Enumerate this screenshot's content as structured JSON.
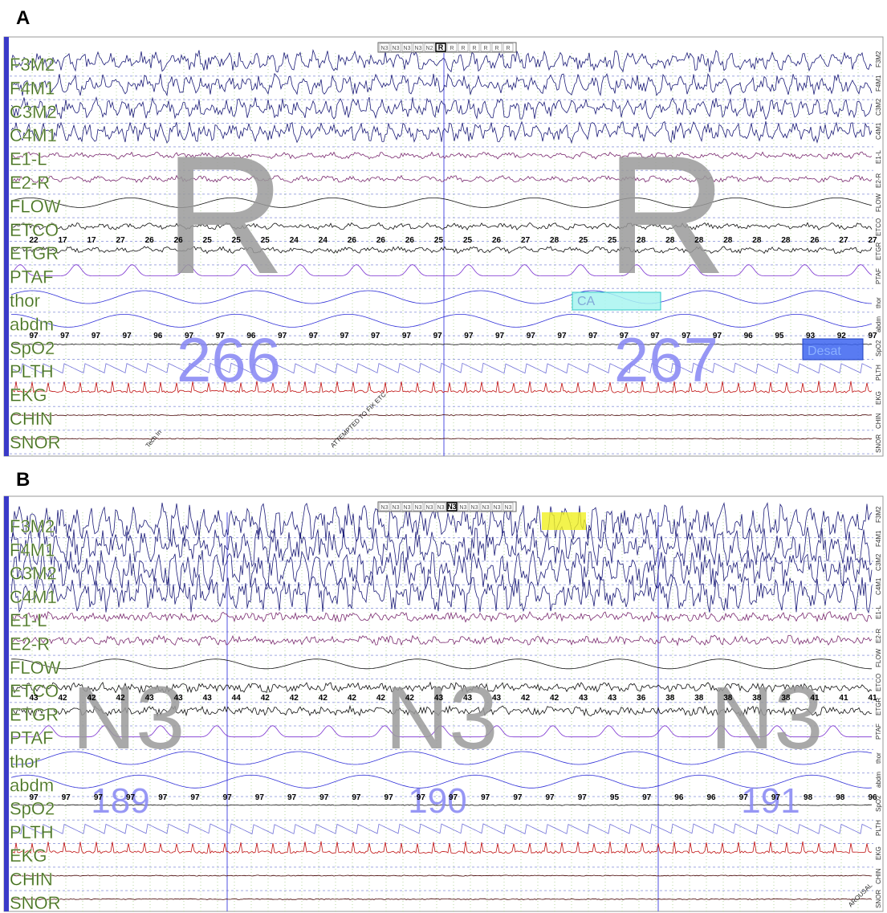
{
  "panels": [
    {
      "label": "A",
      "stages": [
        "N3",
        "N3",
        "N3",
        "N3",
        "N2",
        "R",
        "R",
        "R",
        "R",
        "R",
        "R",
        "R"
      ],
      "current": 5,
      "channels": [
        "F3M2",
        "F4M1",
        "C3M2",
        "C4M1",
        "E1-L",
        "E2-R",
        "FLOW",
        "ETCO",
        "ETGR",
        "PTAF",
        "thor",
        "abdm",
        "SpO2",
        "PLTH",
        "EKG",
        "CHIN",
        "SNOR"
      ],
      "etco": [
        22,
        17,
        17,
        27,
        26,
        26,
        25,
        25,
        25,
        24,
        24,
        26,
        26,
        26,
        25,
        25,
        26,
        27,
        28,
        25,
        25,
        28,
        28,
        28,
        28,
        28,
        28,
        26,
        27,
        27
      ],
      "spo2": [
        97,
        97,
        97,
        97,
        96,
        97,
        97,
        96,
        97,
        97,
        97,
        97,
        97,
        97,
        97,
        97,
        97,
        97,
        97,
        97,
        97,
        97,
        97,
        96,
        95,
        93,
        92,
        97
      ],
      "stage_labels": [
        "R",
        "R"
      ],
      "epochs": [
        266,
        267
      ],
      "events": [
        "CA",
        "Desat"
      ],
      "notes": [
        "Tech In",
        "ATTEMPTED TO FIX ETC"
      ]
    },
    {
      "label": "B",
      "stages": [
        "N3",
        "N3",
        "N3",
        "N3",
        "N3",
        "N3",
        "N3",
        "N3",
        "N3",
        "N3",
        "N3",
        "N3"
      ],
      "current": 6,
      "channels": [
        "F3M2",
        "F4M1",
        "C3M2",
        "C4M1",
        "E1-L",
        "E2-R",
        "FLOW",
        "ETCO",
        "ETGR",
        "PTAF",
        "thor",
        "abdm",
        "SpO2",
        "PLTH",
        "EKG",
        "CHIN",
        "SNOR"
      ],
      "etco": [
        43,
        42,
        42,
        42,
        43,
        43,
        43,
        44,
        42,
        42,
        42,
        42,
        42,
        42,
        43,
        43,
        43,
        42,
        42,
        43,
        43,
        36,
        38,
        38,
        38,
        38,
        38,
        41,
        41,
        41
      ],
      "spo2": [
        97,
        97,
        97,
        97,
        97,
        97,
        97,
        97,
        97,
        97,
        97,
        97,
        97,
        97,
        97,
        97,
        97,
        97,
        95,
        97,
        96,
        96,
        97,
        97,
        98,
        98,
        96
      ],
      "stage_labels": [
        "N3",
        "N3",
        "N3"
      ],
      "epochs": [
        189,
        190,
        191
      ],
      "events": [],
      "notes": [
        "AROUSAL"
      ]
    }
  ]
}
